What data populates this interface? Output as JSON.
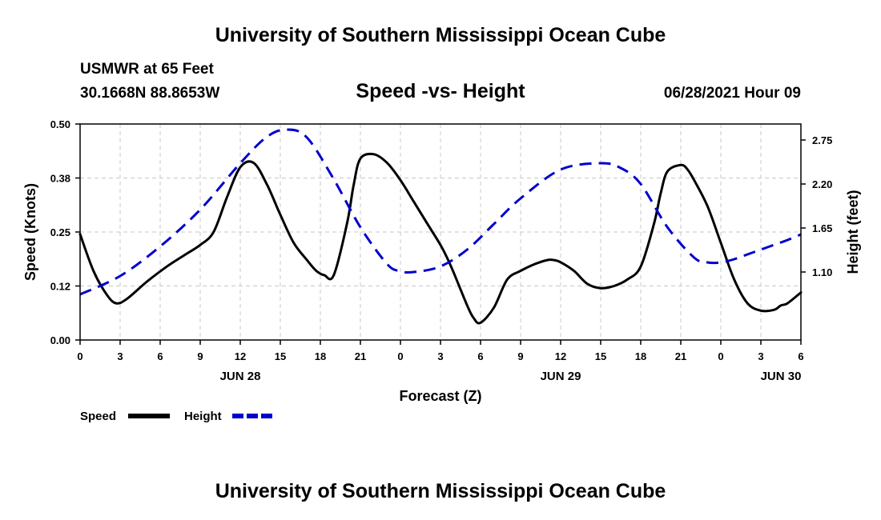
{
  "page": {
    "top_title": "University of Southern Mississippi Ocean Cube",
    "bottom_title": "University of Southern Mississippi Ocean Cube",
    "station_name": "USMWR at 65 Feet",
    "station_coords": "30.1668N  88.8653W",
    "timestamp": "06/28/2021 Hour 09"
  },
  "chart_data": {
    "type": "line",
    "title": "Speed -vs- Height",
    "xlabel": "Forecast (Z)",
    "ylabel": "Speed (Knots)",
    "y2label": "Height (feet)",
    "xlim": [
      0,
      54
    ],
    "ylim": [
      0,
      0.5
    ],
    "y2lim": [
      0.25,
      2.95
    ],
    "grid": true,
    "x_ticks": [
      0,
      3,
      6,
      9,
      12,
      15,
      18,
      21,
      24,
      27,
      30,
      33,
      36,
      39,
      42,
      45,
      48,
      51,
      54
    ],
    "x_tick_labels": [
      "0",
      "3",
      "6",
      "9",
      "12",
      "15",
      "18",
      "21",
      "0",
      "3",
      "6",
      "9",
      "12",
      "15",
      "18",
      "21",
      "0",
      "3",
      "6"
    ],
    "date_labels": [
      {
        "x": 12,
        "label": "JUN 28"
      },
      {
        "x": 36,
        "label": "JUN 29"
      },
      {
        "x": 52.5,
        "label": "JUN 30"
      }
    ],
    "y_ticks": [
      0,
      0.125,
      0.25,
      0.375,
      0.5
    ],
    "y_tick_labels": [
      "0.00",
      "0.12",
      "0.25",
      "0.38",
      "0.50"
    ],
    "y2_ticks": [
      1.1,
      1.65,
      2.2,
      2.75
    ],
    "y2_tick_labels": [
      "1.10",
      "1.65",
      "2.20",
      "2.75"
    ],
    "legend": [
      {
        "name": "Speed",
        "color": "#000000",
        "style": "solid"
      },
      {
        "name": "Height",
        "color": "#0000cc",
        "style": "dashed"
      }
    ],
    "legend_position": "bottom-left",
    "series": [
      {
        "name": "Speed",
        "axis": "left",
        "color": "#000000",
        "dash": "solid",
        "x": [
          0,
          1,
          2,
          2.7,
          3.5,
          5,
          6.5,
          8,
          9,
          10,
          11,
          12,
          13,
          14,
          15,
          16,
          17,
          17.7,
          18.3,
          19,
          20,
          20.5,
          21,
          22,
          23,
          24,
          25,
          26,
          27,
          27.5,
          28,
          29,
          29.5,
          30,
          31,
          32,
          33,
          34,
          35,
          35.5,
          36,
          37,
          38,
          39,
          40,
          41,
          42,
          43,
          43.5,
          44,
          45,
          45.5,
          46,
          47,
          48,
          49,
          50,
          51,
          52,
          52.5,
          53,
          54
        ],
        "values": [
          0.245,
          0.16,
          0.105,
          0.085,
          0.095,
          0.135,
          0.17,
          0.2,
          0.22,
          0.25,
          0.33,
          0.4,
          0.41,
          0.36,
          0.29,
          0.225,
          0.185,
          0.16,
          0.15,
          0.15,
          0.27,
          0.36,
          0.42,
          0.43,
          0.41,
          0.37,
          0.32,
          0.27,
          0.22,
          0.19,
          0.155,
          0.08,
          0.05,
          0.04,
          0.075,
          0.14,
          0.16,
          0.175,
          0.185,
          0.185,
          0.18,
          0.16,
          0.13,
          0.12,
          0.125,
          0.14,
          0.17,
          0.27,
          0.34,
          0.39,
          0.405,
          0.395,
          0.37,
          0.31,
          0.225,
          0.14,
          0.085,
          0.068,
          0.07,
          0.08,
          0.085,
          0.11
        ]
      },
      {
        "name": "Height",
        "axis": "right",
        "color": "#0000cc",
        "dash": "dashed",
        "x": [
          0,
          3,
          6,
          9,
          12,
          14,
          15.5,
          17,
          19,
          21,
          23,
          24,
          25,
          27,
          29,
          31,
          33,
          36,
          39,
          40.5,
          42,
          44,
          46,
          47,
          48,
          49,
          50,
          51,
          52,
          53,
          54
        ],
        "values": [
          0.82,
          1.05,
          1.42,
          1.88,
          2.46,
          2.79,
          2.88,
          2.78,
          2.26,
          1.66,
          1.2,
          1.11,
          1.1,
          1.17,
          1.38,
          1.7,
          2.02,
          2.38,
          2.46,
          2.4,
          2.2,
          1.66,
          1.28,
          1.22,
          1.22,
          1.26,
          1.32,
          1.38,
          1.44,
          1.5,
          1.57
        ]
      }
    ]
  }
}
